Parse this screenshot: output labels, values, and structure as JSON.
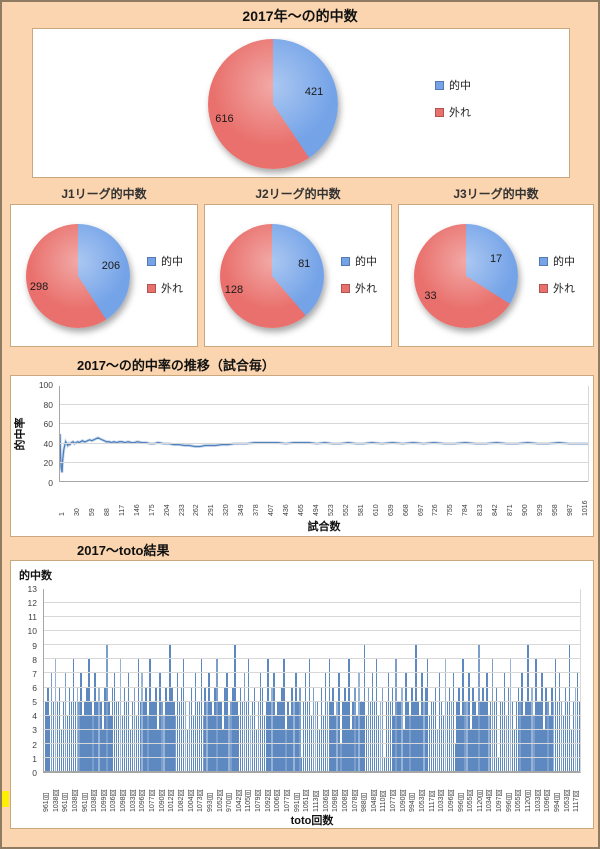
{
  "colors": {
    "background": "#FAD5AF",
    "hit_blue": "#74A3E8",
    "miss_red": "#E9706C",
    "line": "#4F81BD",
    "line_halo": "#A7C0DE",
    "bar": "#5E89C0",
    "grid": "#D8D8D8",
    "highlight": "#FFF000"
  },
  "chart_data": [
    {
      "type": "pie",
      "title": "2017年～の的中数",
      "legend": [
        "的中",
        "外れ"
      ],
      "labels": [
        "的中",
        "外れ"
      ],
      "values": [
        421,
        616
      ],
      "colors": [
        "#74A3E8",
        "#E9706C"
      ],
      "legend_position": "right"
    },
    {
      "type": "pie",
      "title": "J1リーグ的中数",
      "legend": [
        "的中",
        "外れ"
      ],
      "labels": [
        "的中",
        "外れ"
      ],
      "values": [
        206,
        298
      ],
      "colors": [
        "#74A3E8",
        "#E9706C"
      ],
      "legend_position": "right"
    },
    {
      "type": "pie",
      "title": "J2リーグ的中数",
      "legend": [
        "的中",
        "外れ"
      ],
      "labels": [
        "的中",
        "外れ"
      ],
      "values": [
        81,
        128
      ],
      "colors": [
        "#74A3E8",
        "#E9706C"
      ],
      "legend_position": "right"
    },
    {
      "type": "pie",
      "title": "J3リーグ的中数",
      "legend": [
        "的中",
        "外れ"
      ],
      "labels": [
        "的中",
        "外れ"
      ],
      "values": [
        17,
        33
      ],
      "colors": [
        "#74A3E8",
        "#E9706C"
      ],
      "legend_position": "right"
    },
    {
      "type": "line",
      "title": "2017～の的中率の推移（試合毎）",
      "xlabel": "試合数",
      "ylabel": "的中率",
      "ylim": [
        0,
        100
      ],
      "yticks": [
        100,
        80,
        60,
        40,
        20,
        0
      ],
      "xticks": [
        1,
        30,
        59,
        88,
        117,
        146,
        175,
        204,
        233,
        262,
        291,
        320,
        349,
        378,
        407,
        436,
        465,
        494,
        523,
        552,
        581,
        610,
        639,
        668,
        697,
        726,
        755,
        784,
        813,
        842,
        871,
        900,
        929,
        958,
        987,
        1016
      ],
      "grid": true,
      "points": [
        [
          1,
          50
        ],
        [
          2,
          29
        ],
        [
          3,
          17
        ],
        [
          4,
          12
        ],
        [
          5,
          10
        ],
        [
          6,
          22
        ],
        [
          8,
          33
        ],
        [
          10,
          38
        ],
        [
          12,
          42
        ],
        [
          14,
          40
        ],
        [
          16,
          38
        ],
        [
          18,
          40
        ],
        [
          20,
          39
        ],
        [
          23,
          41
        ],
        [
          26,
          42
        ],
        [
          29,
          40
        ],
        [
          32,
          41
        ],
        [
          35,
          42
        ],
        [
          38,
          41
        ],
        [
          41,
          42
        ],
        [
          44,
          43
        ],
        [
          47,
          42
        ],
        [
          50,
          42
        ],
        [
          54,
          43
        ],
        [
          58,
          44
        ],
        [
          62,
          43
        ],
        [
          66,
          44
        ],
        [
          70,
          45
        ],
        [
          74,
          46
        ],
        [
          78,
          45
        ],
        [
          82,
          44
        ],
        [
          86,
          43
        ],
        [
          90,
          42
        ],
        [
          95,
          42
        ],
        [
          100,
          41
        ],
        [
          105,
          42
        ],
        [
          110,
          41
        ],
        [
          115,
          42
        ],
        [
          120,
          42
        ],
        [
          126,
          41
        ],
        [
          132,
          42
        ],
        [
          138,
          41
        ],
        [
          144,
          41
        ],
        [
          150,
          42
        ],
        [
          158,
          41
        ],
        [
          166,
          41
        ],
        [
          174,
          40
        ],
        [
          182,
          40
        ],
        [
          190,
          41
        ],
        [
          200,
          40
        ],
        [
          210,
          40
        ],
        [
          220,
          39
        ],
        [
          230,
          39
        ],
        [
          240,
          38
        ],
        [
          250,
          38
        ],
        [
          260,
          37
        ],
        [
          270,
          37
        ],
        [
          280,
          38
        ],
        [
          290,
          38
        ],
        [
          300,
          38
        ],
        [
          312,
          39
        ],
        [
          324,
          39
        ],
        [
          336,
          40
        ],
        [
          348,
          40
        ],
        [
          360,
          40
        ],
        [
          375,
          41
        ],
        [
          390,
          41
        ],
        [
          405,
          41
        ],
        [
          420,
          41
        ],
        [
          435,
          40
        ],
        [
          450,
          41
        ],
        [
          465,
          41
        ],
        [
          480,
          41
        ],
        [
          495,
          40
        ],
        [
          510,
          41
        ],
        [
          525,
          40
        ],
        [
          540,
          40
        ],
        [
          555,
          41
        ],
        [
          570,
          40
        ],
        [
          585,
          40
        ],
        [
          600,
          41
        ],
        [
          620,
          40
        ],
        [
          640,
          41
        ],
        [
          660,
          40
        ],
        [
          680,
          41
        ],
        [
          700,
          40
        ],
        [
          720,
          41
        ],
        [
          740,
          40
        ],
        [
          760,
          40
        ],
        [
          780,
          41
        ],
        [
          800,
          40
        ],
        [
          820,
          40
        ],
        [
          840,
          41
        ],
        [
          860,
          40
        ],
        [
          880,
          40
        ],
        [
          900,
          41
        ],
        [
          920,
          40
        ],
        [
          940,
          40
        ],
        [
          960,
          41
        ],
        [
          980,
          40
        ],
        [
          1000,
          40
        ],
        [
          1016,
          40
        ]
      ]
    },
    {
      "type": "bar",
      "title": "2017～toto結果",
      "ylabel": "的中数",
      "xlabel": "toto回数",
      "ylim": [
        0,
        13
      ],
      "yticks": [
        13,
        12,
        11,
        10,
        9,
        8,
        7,
        6,
        5,
        4,
        3,
        2,
        1,
        0
      ],
      "grid": true,
      "xtick_labels": [
        "961回",
        "1038回",
        "961回",
        "1038回",
        "961回",
        "1038回",
        "1099回",
        "1036回",
        "1098回",
        "1033回",
        "1096回",
        "1077回",
        "1090回",
        "1012回",
        "1082回",
        "1004回",
        "1073回",
        "993回",
        "1052回",
        "970回",
        "1042回",
        "1105回",
        "1079回",
        "1092回",
        "1006回",
        "1077回",
        "991回",
        "1051回",
        "1113回",
        "1036回",
        "1098回",
        "1008回",
        "1078回",
        "988回",
        "1048回",
        "1110回",
        "1077回",
        "1090回",
        "994回",
        "1053回",
        "1117回",
        "1033回",
        "1096回",
        "996回",
        "1055回",
        "1120回",
        "1034回",
        "1097回",
        "996回",
        "1055回",
        "1120回",
        "1033回",
        "1096回",
        "994回",
        "1053回",
        "1117回"
      ],
      "values": [
        5,
        6,
        4,
        7,
        5,
        8,
        5,
        6,
        3,
        5,
        7,
        4,
        6,
        5,
        8,
        5,
        6,
        5,
        7,
        4,
        5,
        6,
        8,
        5,
        4,
        7,
        5,
        6,
        5,
        3,
        6,
        9,
        5,
        4,
        6,
        7,
        5,
        5,
        8,
        4,
        6,
        5,
        7,
        3,
        5,
        6,
        4,
        8,
        5,
        7,
        5,
        6,
        4,
        8,
        5,
        5,
        6,
        3,
        7,
        5,
        4,
        6,
        5,
        9,
        6,
        5,
        4,
        7,
        5,
        6,
        8,
        5,
        3,
        5,
        6,
        4,
        7,
        5,
        5,
        8,
        4,
        6,
        5,
        7,
        5,
        4,
        6,
        8,
        5,
        5,
        3,
        6,
        7,
        4,
        5,
        6,
        9,
        5,
        4,
        6,
        5,
        7,
        5,
        8,
        4,
        5,
        6,
        3,
        5,
        7,
        6,
        4,
        5,
        8,
        5,
        6,
        7,
        4,
        5,
        5,
        6,
        8,
        3,
        5,
        4,
        6,
        5,
        7,
        5,
        6,
        1,
        5,
        7,
        5,
        8,
        4,
        6,
        5,
        5,
        3,
        6,
        4,
        7,
        5,
        8,
        5,
        6,
        4,
        5,
        7,
        2,
        5,
        6,
        5,
        8,
        3,
        5,
        6,
        4,
        7,
        5,
        5,
        9,
        4,
        6,
        5,
        7,
        5,
        8,
        4,
        5,
        6,
        1,
        5,
        7,
        5,
        6,
        4,
        8,
        5,
        5,
        6,
        3,
        7,
        5,
        4,
        6,
        5,
        9,
        5,
        4,
        7,
        5,
        6,
        8,
        4,
        5,
        5,
        6,
        3,
        7,
        5,
        4,
        8,
        5,
        6,
        5,
        7,
        2,
        5,
        6,
        4,
        8,
        5,
        5,
        7,
        3,
        6,
        5,
        4,
        9,
        5,
        6,
        5,
        7,
        4,
        5,
        8,
        5,
        6,
        1,
        5,
        5,
        7,
        4,
        6,
        8,
        5,
        3,
        5,
        6,
        5,
        7,
        4,
        5,
        9,
        5,
        6,
        4,
        8,
        5,
        5,
        7,
        3,
        6,
        5,
        4,
        6,
        5,
        8,
        5,
        7,
        5,
        4,
        6,
        5,
        9,
        3,
        5,
        6,
        7,
        5
      ]
    }
  ]
}
